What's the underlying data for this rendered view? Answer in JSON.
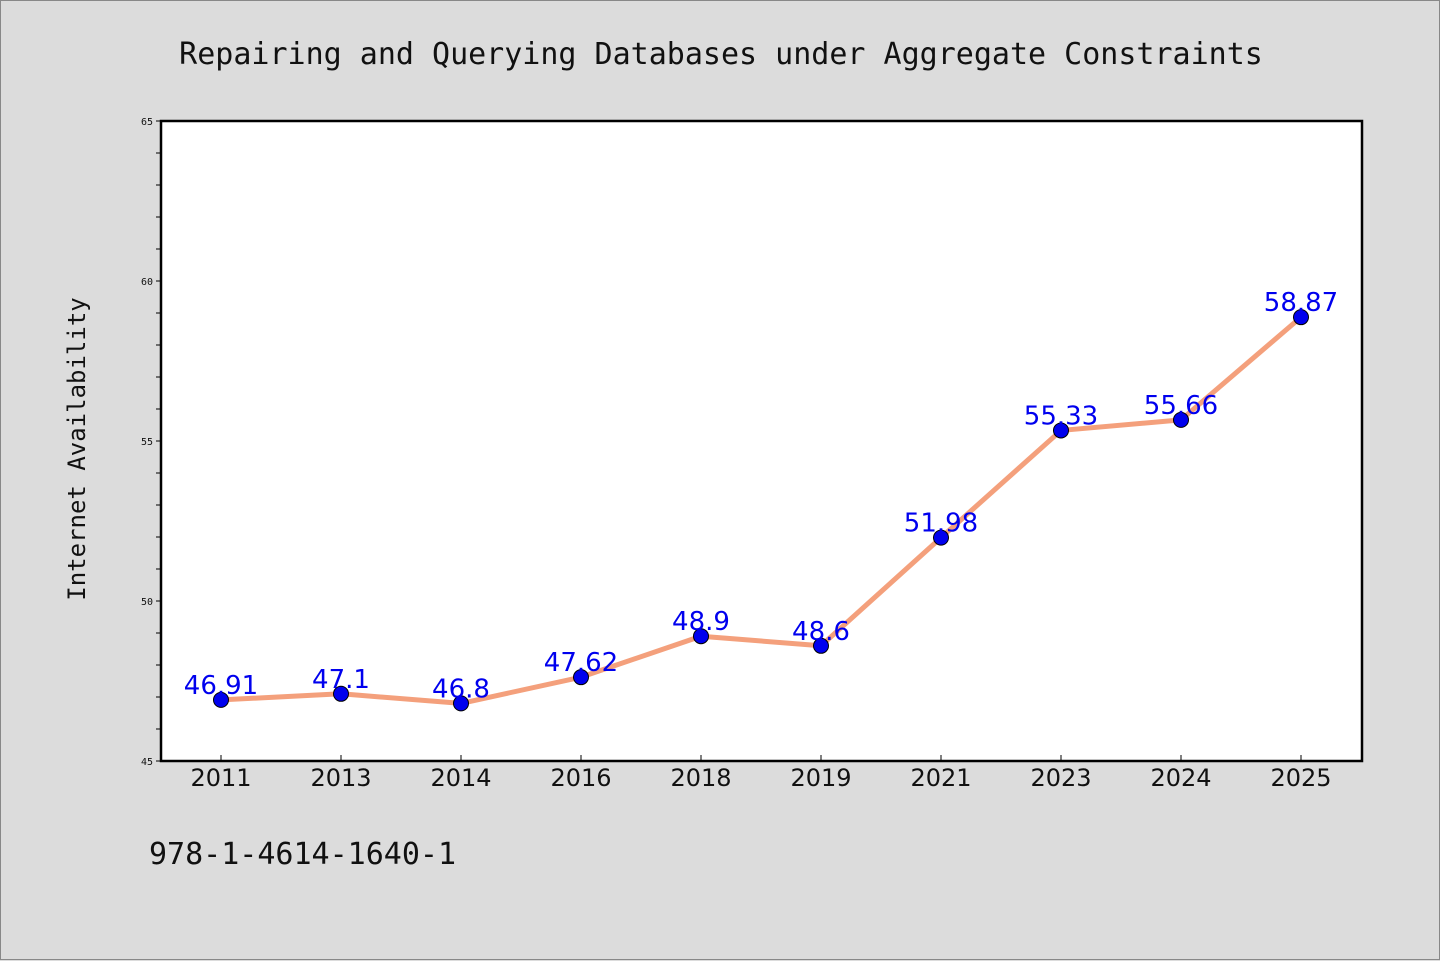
{
  "chart_data": {
    "type": "line",
    "title": "Repairing and Querying Databases under Aggregate Constraints",
    "ylabel": "Internet Availability",
    "xlabel": "",
    "categories": [
      "2011",
      "2013",
      "2014",
      "2016",
      "2018",
      "2019",
      "2021",
      "2023",
      "2024",
      "2025"
    ],
    "series": [
      {
        "values": [
          46.91,
          47.1,
          46.8,
          47.62,
          48.9,
          48.6,
          51.98,
          55.33,
          55.66,
          58.87
        ],
        "data_labels": [
          "46.91",
          "47.1",
          "46.8",
          "47.62",
          "48.9",
          "48.6",
          "51.98",
          "55.33",
          "55.66",
          "58.87"
        ]
      }
    ],
    "ylim": [
      45,
      65
    ],
    "yticks": [
      "45",
      "50",
      "55",
      "60",
      "65"
    ],
    "grid": false,
    "legend": "none",
    "colors": {
      "line": "#f4a07c",
      "marker": "#0000ee",
      "label": "#0000ee",
      "background": "#dcdcdc",
      "plot_area": "#ffffff"
    }
  },
  "footer": {
    "isbn": "978-1-4614-1640-1"
  }
}
